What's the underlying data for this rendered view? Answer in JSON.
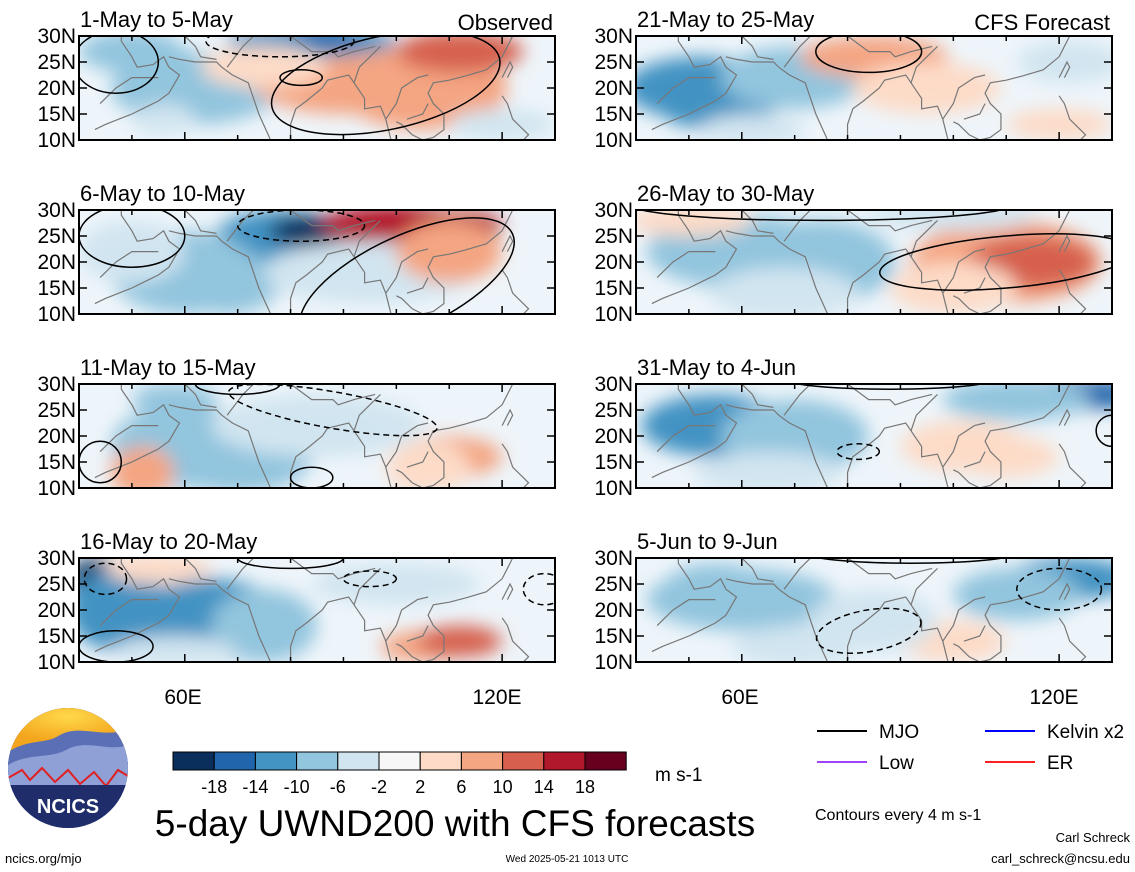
{
  "chart_data": {
    "type": "heatmap",
    "title": "5-day UWND200 with CFS forecasts",
    "variable": "UWND200",
    "units": "m s-1",
    "contour_note": "Contours every 4 m s-1",
    "xlim": [
      40,
      130
    ],
    "ylim": [
      10,
      30
    ],
    "lat_ticks": [
      "10N",
      "15N",
      "20N",
      "25N",
      "30N"
    ],
    "lon_ticks": [
      "60E",
      "120E"
    ],
    "colorbar": {
      "levels": [
        "-18",
        "-14",
        "-10",
        "-6",
        "-2",
        "2",
        "6",
        "10",
        "14",
        "18"
      ],
      "colors": [
        "#0b2f5c",
        "#2166ac",
        "#4393c3",
        "#92c5de",
        "#d1e5f0",
        "#f7f7f7",
        "#fddbc7",
        "#f4a582",
        "#d6604d",
        "#b2182b",
        "#67001f"
      ]
    },
    "legend": [
      {
        "label": "MJO",
        "color": "#000000"
      },
      {
        "label": "Kelvin x2",
        "color": "#0000ff"
      },
      {
        "label": "Low",
        "color": "#a040ff"
      },
      {
        "label": "ER",
        "color": "#ff2020"
      }
    ],
    "panels": [
      {
        "period": "1-May to 5-May",
        "tag": "Observed",
        "col": 0,
        "row": 0
      },
      {
        "period": "6-May to 10-May",
        "tag": "",
        "col": 0,
        "row": 1
      },
      {
        "period": "11-May to 15-May",
        "tag": "",
        "col": 0,
        "row": 2
      },
      {
        "period": "16-May to 20-May",
        "tag": "",
        "col": 0,
        "row": 3
      },
      {
        "period": "21-May to 25-May",
        "tag": "CFS Forecast",
        "col": 1,
        "row": 0
      },
      {
        "period": "26-May to 30-May",
        "tag": "",
        "col": 1,
        "row": 1
      },
      {
        "period": "31-May to 4-Jun",
        "tag": "",
        "col": 1,
        "row": 2
      },
      {
        "period": "5-Jun to 9-Jun",
        "tag": "",
        "col": 1,
        "row": 3
      }
    ]
  },
  "branding": {
    "logo_text": "NCICS",
    "site": "ncics.org/mjo",
    "timestamp": "Wed 2025-05-21 1013 UTC",
    "author": "Carl Schreck",
    "email": "carl_schreck@ncsu.edu"
  }
}
